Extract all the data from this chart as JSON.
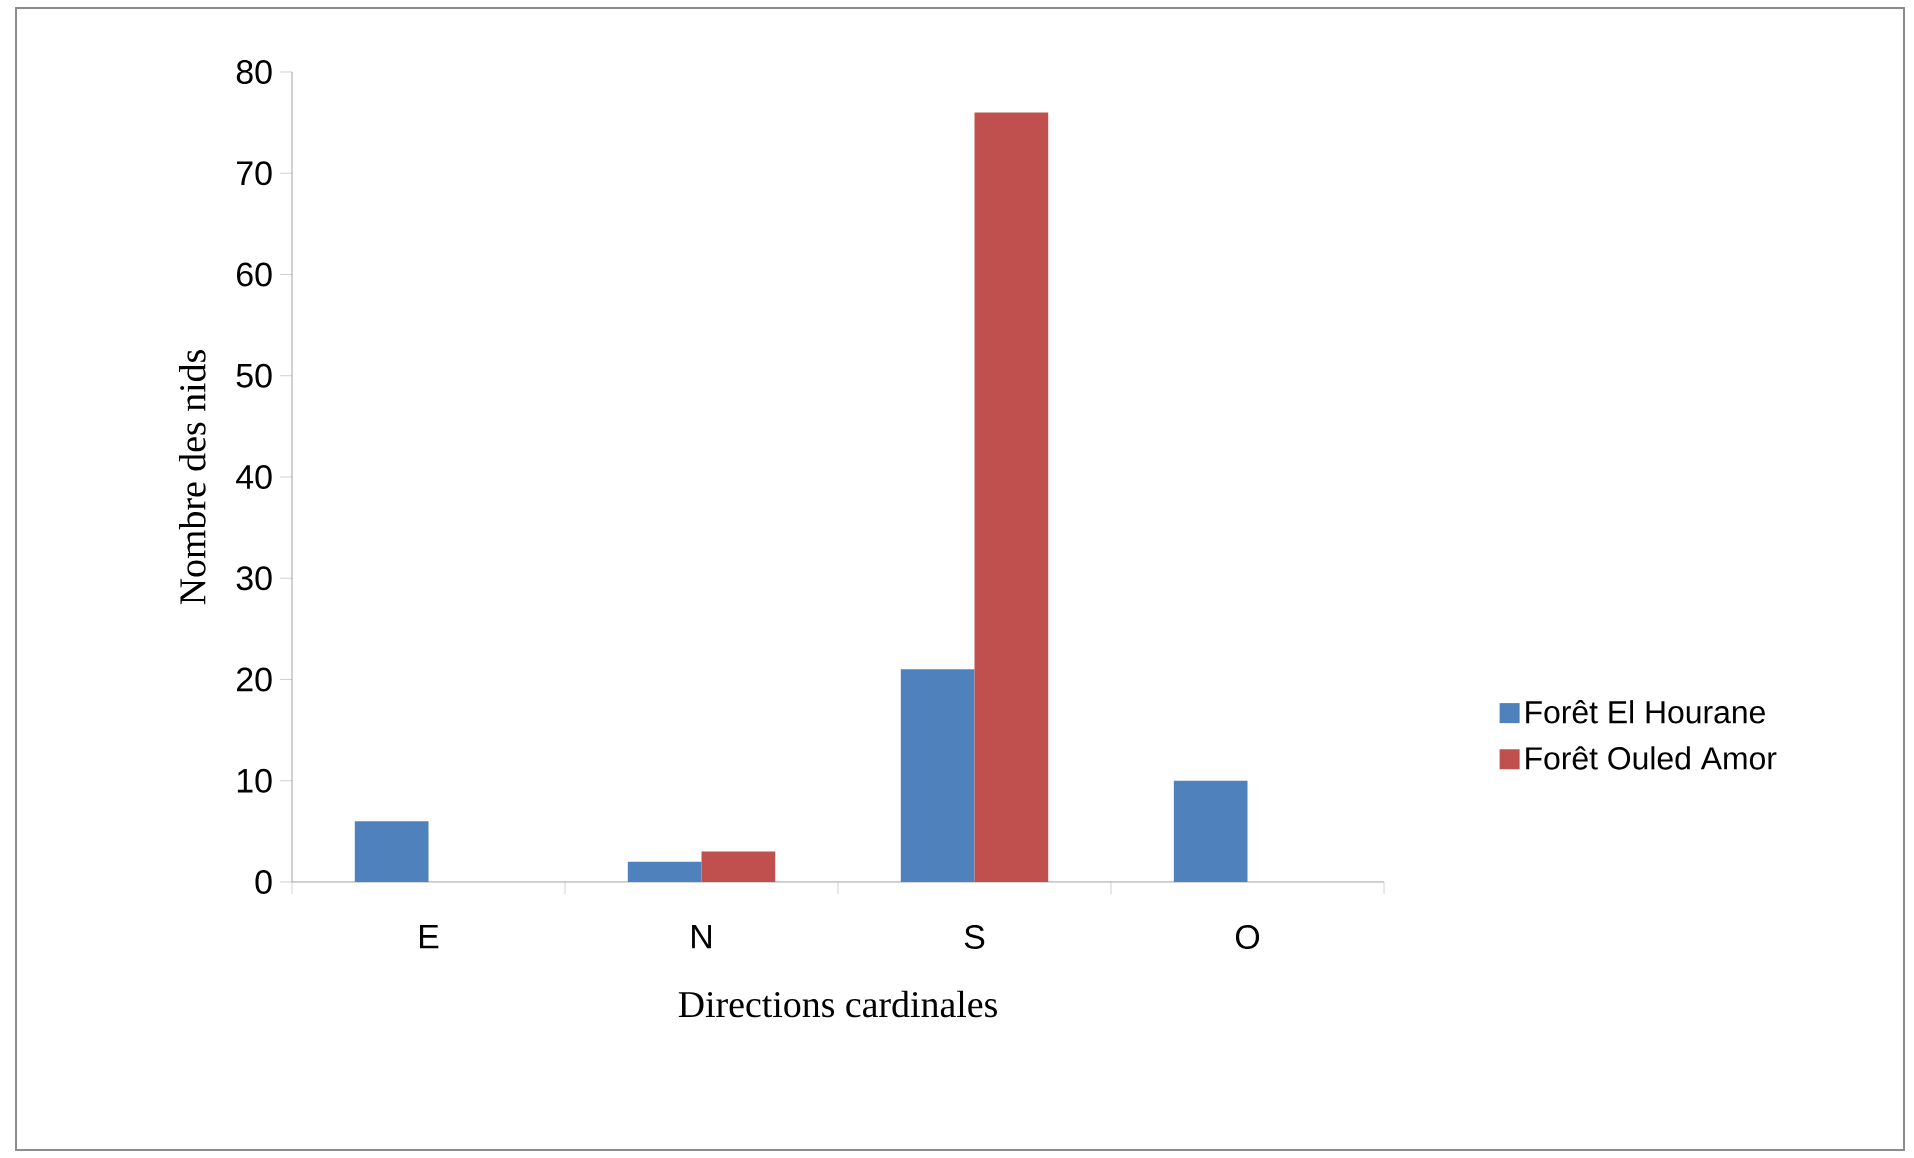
{
  "chart_data": {
    "type": "bar",
    "xlabel": "Directions cardinales",
    "ylabel": "Nombre des nids",
    "categories": [
      "E",
      "N",
      "S",
      "O"
    ],
    "series": [
      {
        "name": "Forêt El Hourane",
        "color": "#4f81bd",
        "values": [
          6,
          2,
          21,
          10
        ]
      },
      {
        "name": "Forêt Ouled Amor",
        "color": "#c0504d",
        "values": [
          0,
          3,
          76,
          0
        ]
      }
    ],
    "ylim": [
      0,
      80
    ],
    "yticks": [
      0,
      10,
      20,
      30,
      40,
      50,
      60,
      70,
      80
    ],
    "legend": "right"
  }
}
